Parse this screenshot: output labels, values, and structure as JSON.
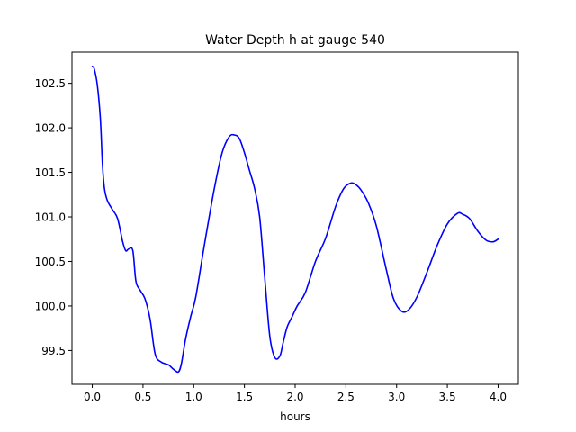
{
  "chart_data": {
    "type": "line",
    "title": "Water Depth h at gauge 540",
    "xlabel": "hours",
    "ylabel": "",
    "xlim": [
      -0.2,
      4.2
    ],
    "ylim": [
      99.12,
      102.85
    ],
    "grid": false,
    "legend": "none",
    "xticks": [
      0.0,
      0.5,
      1.0,
      1.5,
      2.0,
      2.5,
      3.0,
      3.5,
      4.0
    ],
    "xtick_labels": [
      "0.0",
      "0.5",
      "1.0",
      "1.5",
      "2.0",
      "2.5",
      "3.0",
      "3.5",
      "4.0"
    ],
    "yticks": [
      99.5,
      100.0,
      100.5,
      101.0,
      101.5,
      102.0,
      102.5
    ],
    "ytick_labels": [
      "99.5",
      "100.0",
      "100.5",
      "101.0",
      "101.5",
      "102.0",
      "102.5"
    ],
    "series": [
      {
        "color": "#0000ff",
        "x": [
          0.0,
          0.02,
          0.05,
          0.08,
          0.1,
          0.12,
          0.15,
          0.2,
          0.25,
          0.3,
          0.33,
          0.36,
          0.4,
          0.43,
          0.47,
          0.52,
          0.57,
          0.62,
          0.68,
          0.75,
          0.8,
          0.85,
          0.88,
          0.92,
          0.97,
          1.02,
          1.1,
          1.2,
          1.28,
          1.35,
          1.4,
          1.45,
          1.5,
          1.55,
          1.6,
          1.65,
          1.7,
          1.75,
          1.8,
          1.85,
          1.88,
          1.92,
          1.97,
          2.02,
          2.1,
          2.2,
          2.3,
          2.4,
          2.48,
          2.55,
          2.6,
          2.65,
          2.72,
          2.8,
          2.9,
          2.97,
          3.05,
          3.12,
          3.2,
          3.3,
          3.4,
          3.5,
          3.6,
          3.65,
          3.72,
          3.8,
          3.88,
          3.95,
          4.0
        ],
        "y": [
          102.69,
          102.66,
          102.48,
          102.1,
          101.6,
          101.32,
          101.18,
          101.08,
          100.98,
          100.72,
          100.62,
          100.64,
          100.62,
          100.28,
          100.18,
          100.08,
          99.85,
          99.46,
          99.37,
          99.34,
          99.29,
          99.26,
          99.36,
          99.63,
          99.88,
          100.1,
          100.65,
          101.3,
          101.72,
          101.9,
          101.92,
          101.88,
          101.72,
          101.52,
          101.32,
          101.0,
          100.32,
          99.66,
          99.42,
          99.44,
          99.58,
          99.76,
          99.88,
          100.0,
          100.15,
          100.5,
          100.76,
          101.12,
          101.32,
          101.38,
          101.36,
          101.3,
          101.16,
          100.9,
          100.4,
          100.08,
          99.94,
          99.96,
          100.1,
          100.38,
          100.68,
          100.92,
          101.04,
          101.03,
          100.98,
          100.84,
          100.74,
          100.72,
          100.75
        ]
      }
    ]
  }
}
